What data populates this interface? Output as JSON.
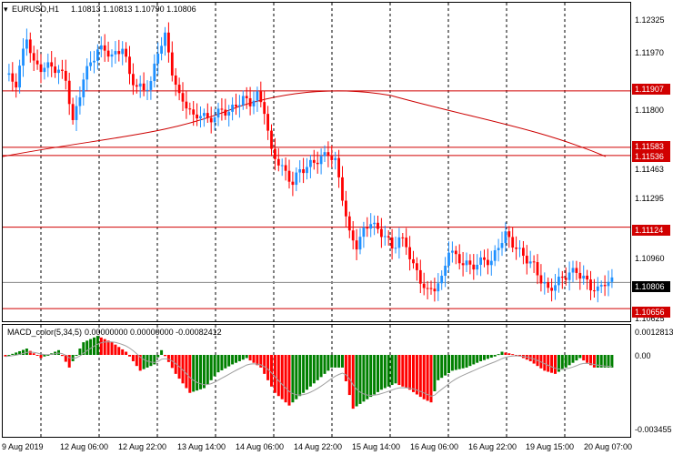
{
  "window": {
    "title": "EURUSD,H1",
    "ohlc": "1.10813 1.10813 1.10790 1.10806"
  },
  "colors": {
    "bull": "#1e90ff",
    "bear": "#ff0000",
    "hline": "#d10000",
    "ma": "#cc0000",
    "macd_pos": "#008000",
    "macd_neg": "#ff0000",
    "signal": "#a0a0a0",
    "grid": "#000000",
    "price_tag": "#000000"
  },
  "price_axis": {
    "ticks": [
      "1.12325",
      "1.11970",
      "1.11800",
      "1.11463",
      "1.11295",
      "1.10960",
      "1.10625"
    ],
    "hlines": [
      "1.11907",
      "1.11583",
      "1.11536",
      "1.11124",
      "1.10656"
    ],
    "current": "1.10806"
  },
  "time_axis": {
    "labels": [
      "9 Aug 2019",
      "12 Aug 06:00",
      "12 Aug 22:00",
      "13 Aug 14:00",
      "14 Aug 06:00",
      "14 Aug 22:00",
      "15 Aug 14:00",
      "16 Aug 06:00",
      "16 Aug 22:00",
      "19 Aug 15:00",
      "20 Aug 07:00"
    ]
  },
  "indicator": {
    "label": "MACD_color(5,34,5)",
    "values": "0.00000000 0.00000000 -0.00082412",
    "ticks": [
      "0.0012813",
      "0.00",
      "-0.003455"
    ]
  },
  "chart_data": {
    "type": "candlestick",
    "symbol": "EURUSD",
    "timeframe": "H1",
    "ylim": [
      1.106,
      1.1237
    ],
    "close_path": [
      [
        0,
        1.12
      ],
      [
        3,
        1.1195
      ],
      [
        6,
        1.1222
      ],
      [
        8,
        1.1206
      ],
      [
        10,
        1.1204
      ],
      [
        13,
        1.1205
      ],
      [
        15,
        1.1202
      ],
      [
        17,
        1.1198
      ],
      [
        19,
        1.1172
      ],
      [
        22,
        1.1198
      ],
      [
        24,
        1.1207
      ],
      [
        26,
        1.1214
      ],
      [
        28,
        1.1215
      ],
      [
        30,
        1.121
      ],
      [
        33,
        1.1216
      ],
      [
        35,
        1.12
      ],
      [
        37,
        1.1193
      ],
      [
        39,
        1.1192
      ],
      [
        41,
        1.1195
      ],
      [
        43,
        1.1214
      ],
      [
        45,
        1.1222
      ],
      [
        47,
        1.1202
      ],
      [
        49,
        1.1187
      ],
      [
        51,
        1.1183
      ],
      [
        53,
        1.1175
      ],
      [
        55,
        1.1178
      ],
      [
        57,
        1.1174
      ],
      [
        59,
        1.1176
      ],
      [
        61,
        1.118
      ],
      [
        63,
        1.1178
      ],
      [
        65,
        1.1183
      ],
      [
        67,
        1.1186
      ],
      [
        69,
        1.1184
      ],
      [
        71,
        1.1188
      ],
      [
        73,
        1.118
      ],
      [
        75,
        1.1155
      ],
      [
        77,
        1.115
      ],
      [
        79,
        1.1143
      ],
      [
        81,
        1.1138
      ],
      [
        83,
        1.1145
      ],
      [
        85,
        1.1147
      ],
      [
        87,
        1.115
      ],
      [
        89,
        1.1152
      ],
      [
        91,
        1.1155
      ],
      [
        93,
        1.115
      ],
      [
        95,
        1.113
      ],
      [
        97,
        1.1108
      ],
      [
        99,
        1.1102
      ],
      [
        101,
        1.111
      ],
      [
        103,
        1.1116
      ],
      [
        105,
        1.111
      ],
      [
        107,
        1.1108
      ],
      [
        109,
        1.11
      ],
      [
        111,
        1.1106
      ],
      [
        113,
        1.1102
      ],
      [
        115,
        1.109
      ],
      [
        117,
        1.1082
      ],
      [
        119,
        1.1075
      ],
      [
        121,
        1.1078
      ],
      [
        123,
        1.1082
      ],
      [
        125,
        1.11
      ],
      [
        127,
        1.1095
      ],
      [
        129,
        1.1092
      ],
      [
        131,
        1.109
      ],
      [
        133,
        1.1091
      ],
      [
        135,
        1.1094
      ],
      [
        137,
        1.1092
      ],
      [
        139,
        1.1102
      ],
      [
        141,
        1.1108
      ],
      [
        143,
        1.1103
      ],
      [
        145,
        1.1098
      ],
      [
        147,
        1.1094
      ],
      [
        149,
        1.109
      ],
      [
        151,
        1.1082
      ],
      [
        153,
        1.1076
      ],
      [
        155,
        1.108
      ],
      [
        157,
        1.1083
      ],
      [
        159,
        1.1086
      ],
      [
        161,
        1.1087
      ],
      [
        163,
        1.1083
      ],
      [
        165,
        1.1078
      ],
      [
        167,
        1.1076
      ],
      [
        169,
        1.1081
      ],
      [
        171,
        1.1081
      ]
    ],
    "macd_path": [
      [
        0,
        -0.0001
      ],
      [
        6,
        0.0004
      ],
      [
        10,
        -0.0002
      ],
      [
        15,
        0.0003
      ],
      [
        18,
        -0.0008
      ],
      [
        22,
        0.0008
      ],
      [
        26,
        0.0012
      ],
      [
        30,
        0.0008
      ],
      [
        34,
        0.0002
      ],
      [
        38,
        -0.001
      ],
      [
        42,
        -0.0006
      ],
      [
        44,
        0.0003
      ],
      [
        48,
        -0.0012
      ],
      [
        52,
        -0.0024
      ],
      [
        56,
        -0.0021
      ],
      [
        60,
        -0.0011
      ],
      [
        64,
        -0.0006
      ],
      [
        68,
        -0.0002
      ],
      [
        72,
        -0.0008
      ],
      [
        76,
        -0.0024
      ],
      [
        80,
        -0.0032
      ],
      [
        84,
        -0.0024
      ],
      [
        88,
        -0.0016
      ],
      [
        92,
        -0.0008
      ],
      [
        95,
        -0.0008
      ],
      [
        98,
        -0.0034
      ],
      [
        102,
        -0.0028
      ],
      [
        106,
        -0.0022
      ],
      [
        110,
        -0.0018
      ],
      [
        114,
        -0.0022
      ],
      [
        118,
        -0.0028
      ],
      [
        120,
        -0.003
      ],
      [
        122,
        -0.0016
      ],
      [
        126,
        -0.001
      ],
      [
        130,
        -0.0008
      ],
      [
        134,
        -0.0004
      ],
      [
        138,
        -0.0001
      ],
      [
        140,
        0.0002
      ],
      [
        144,
        0.0
      ],
      [
        148,
        -0.0004
      ],
      [
        152,
        -0.001
      ],
      [
        155,
        -0.0012
      ],
      [
        158,
        -0.0008
      ],
      [
        162,
        -0.0002
      ],
      [
        166,
        -0.0008
      ],
      [
        171,
        -0.0008
      ]
    ]
  }
}
